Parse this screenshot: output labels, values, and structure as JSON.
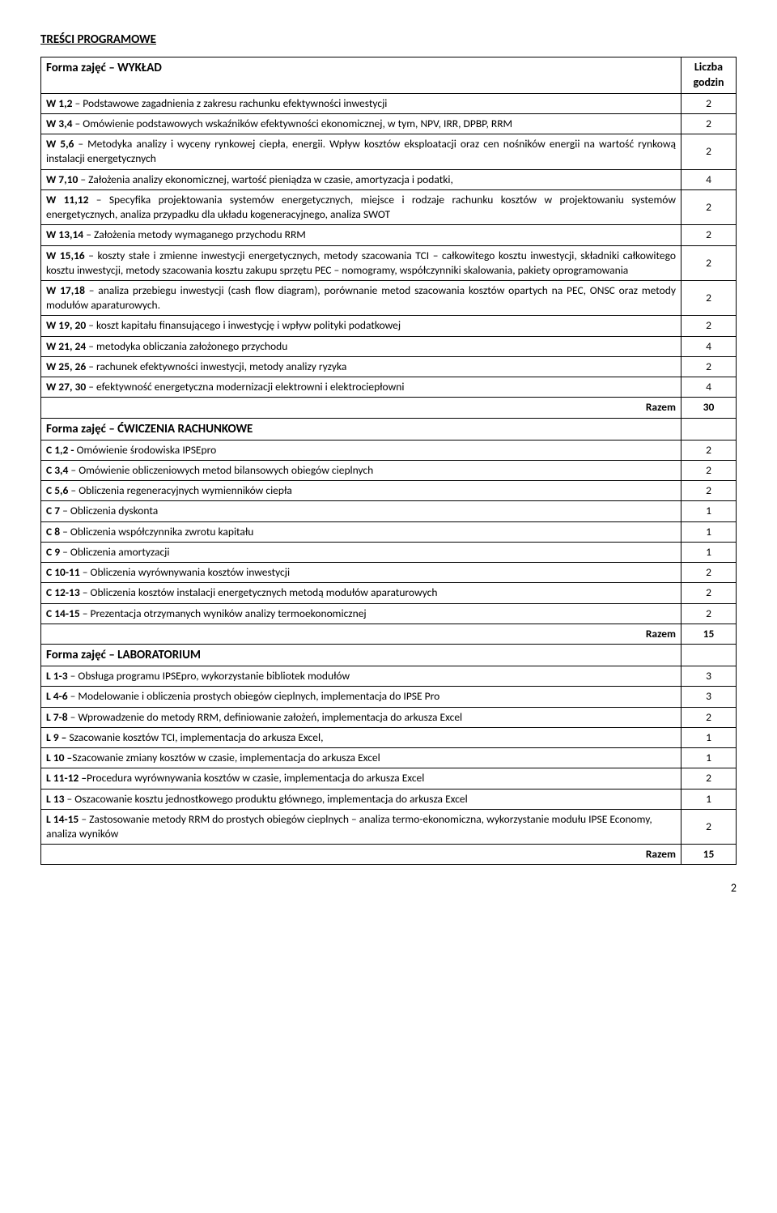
{
  "section_title": "TREŚCI PROGRAMOWE",
  "header_liczba": "Liczba godzin",
  "forma1": "Forma zajęć – WYKŁAD",
  "forma2": "Forma zajęć – ĆWICZENIA RACHUNKOWE",
  "forma3": "Forma zajęć – LABORATORIUM",
  "razem_label": "Razem",
  "wyk": [
    {
      "b": "W 1,2",
      "t": " – Podstawowe zagadnienia z zakresu rachunku efektywności inwestycji",
      "v": "2"
    },
    {
      "b": "W 3,4",
      "t": " – Omówienie podstawowych wskaźników efektywności ekonomicznej, w tym, NPV, IRR, DPBP, RRM",
      "v": "2"
    },
    {
      "b": "W 5,6",
      "t": " – Metodyka analizy i wyceny rynkowej ciepła, energii. Wpływ kosztów eksploatacji oraz cen nośników energii na wartość rynkową instalacji energetycznych",
      "v": "2"
    },
    {
      "b": "W 7,10",
      "t": " – Założenia analizy ekonomicznej, wartość pieniądza w czasie, amortyzacja i podatki,",
      "v": "4"
    },
    {
      "b": "W 11,12",
      "t": " – Specyfika projektowania systemów energetycznych, miejsce i rodzaje rachunku kosztów w projektowaniu systemów energetycznych, analiza przypadku dla układu kogeneracyjnego, analiza SWOT",
      "v": "2"
    },
    {
      "b": "W 13,14",
      "t": " – Założenia metody wymaganego przychodu RRM",
      "v": "2"
    },
    {
      "b": "W 15,16",
      "t": " – koszty stałe i zmienne inwestycji energetycznych, metody szacowania TCI – całkowitego kosztu inwestycji, składniki całkowitego kosztu inwestycji, metody szacowania kosztu zakupu sprzętu PEC – nomogramy, współczynniki skalowania, pakiety oprogramowania",
      "v": "2"
    },
    {
      "b": "W 17,18",
      "t": " – analiza przebiegu inwestycji (cash  flow diagram), porównanie metod szacowania kosztów opartych na PEC, ONSC oraz metody modułów aparaturowych.",
      "v": "2"
    },
    {
      "b": "W 19, 20",
      "t": " – koszt  kapitału  finansującego i inwestycję  i  wpływ  polityki  podatkowej",
      "v": "2"
    },
    {
      "b": "W 21, 24",
      "t": " – metodyka obliczania założonego przychodu",
      "v": "4"
    },
    {
      "b": "W 25, 26",
      "t": " – rachunek efektywności inwestycji, metody analizy ryzyka",
      "v": "2"
    },
    {
      "b": "W 27, 30",
      "t": " – efektywność energetyczna modernizacji elektrowni i elektrociepłowni",
      "v": "4"
    }
  ],
  "wyk_razem": "30",
  "cwi": [
    {
      "b": "C 1,2 -",
      "t": " Omówienie środowiska IPSEpro",
      "v": "2"
    },
    {
      "b": "C 3,4",
      "t": " – Omówienie obliczeniowych metod bilansowych obiegów cieplnych",
      "v": "2"
    },
    {
      "b": "C 5,6",
      "t": " – Obliczenia regeneracyjnych wymienników ciepła",
      "v": "2"
    },
    {
      "b": "C 7",
      "t": " – Obliczenia dyskonta",
      "v": "1"
    },
    {
      "b": "C 8",
      "t": " – Obliczenia współczynnika zwrotu kapitału",
      "v": "1"
    },
    {
      "b": "C 9",
      "t": " – Obliczenia amortyzacji",
      "v": "1"
    },
    {
      "b": "C 10-11",
      "t": " – Obliczenia wyrównywania kosztów inwestycji",
      "v": "2"
    },
    {
      "b": "C 12-13",
      "t": " – Obliczenia kosztów instalacji energetycznych metodą modułów aparaturowych",
      "v": "2"
    },
    {
      "b": "C 14-15",
      "t": " – Prezentacja otrzymanych wyników analizy termoekonomicznej",
      "v": "2"
    }
  ],
  "cwi_razem": "15",
  "lab": [
    {
      "b": "L 1-3",
      "t": " – Obsługa programu IPSEpro, wykorzystanie bibliotek modułów",
      "v": "3"
    },
    {
      "b": "L 4-6",
      "t": " – Modelowanie i obliczenia prostych obiegów cieplnych, implementacja do IPSE Pro",
      "v": "3"
    },
    {
      "b": "L 7-8",
      "t": " – Wprowadzenie do metody RRM, definiowanie założeń,  implementacja do arkusza Excel",
      "v": "2"
    },
    {
      "b": "L 9 –",
      "t": " Szacowanie kosztów TCI, implementacja do arkusza Excel,",
      "v": "1"
    },
    {
      "b": "L 10 –",
      "t": "Szacowanie zmiany kosztów w czasie, implementacja do arkusza Excel",
      "v": "1"
    },
    {
      "b": "L 11-12 –",
      "t": "Procedura wyrównywania kosztów w czasie, implementacja do arkusza Excel",
      "v": "2"
    },
    {
      "b": "L 13",
      "t": " – Oszacowanie kosztu jednostkowego produktu głównego,  implementacja do arkusza Excel",
      "v": "1"
    },
    {
      "b": "L 14-15",
      "t": " – Zastosowanie metody RRM do prostych obiegów cieplnych – analiza termo-ekonomiczna, wykorzystanie modułu IPSE Economy, analiza wyników",
      "v": "2"
    }
  ],
  "lab_razem": "15",
  "page_no": "2"
}
